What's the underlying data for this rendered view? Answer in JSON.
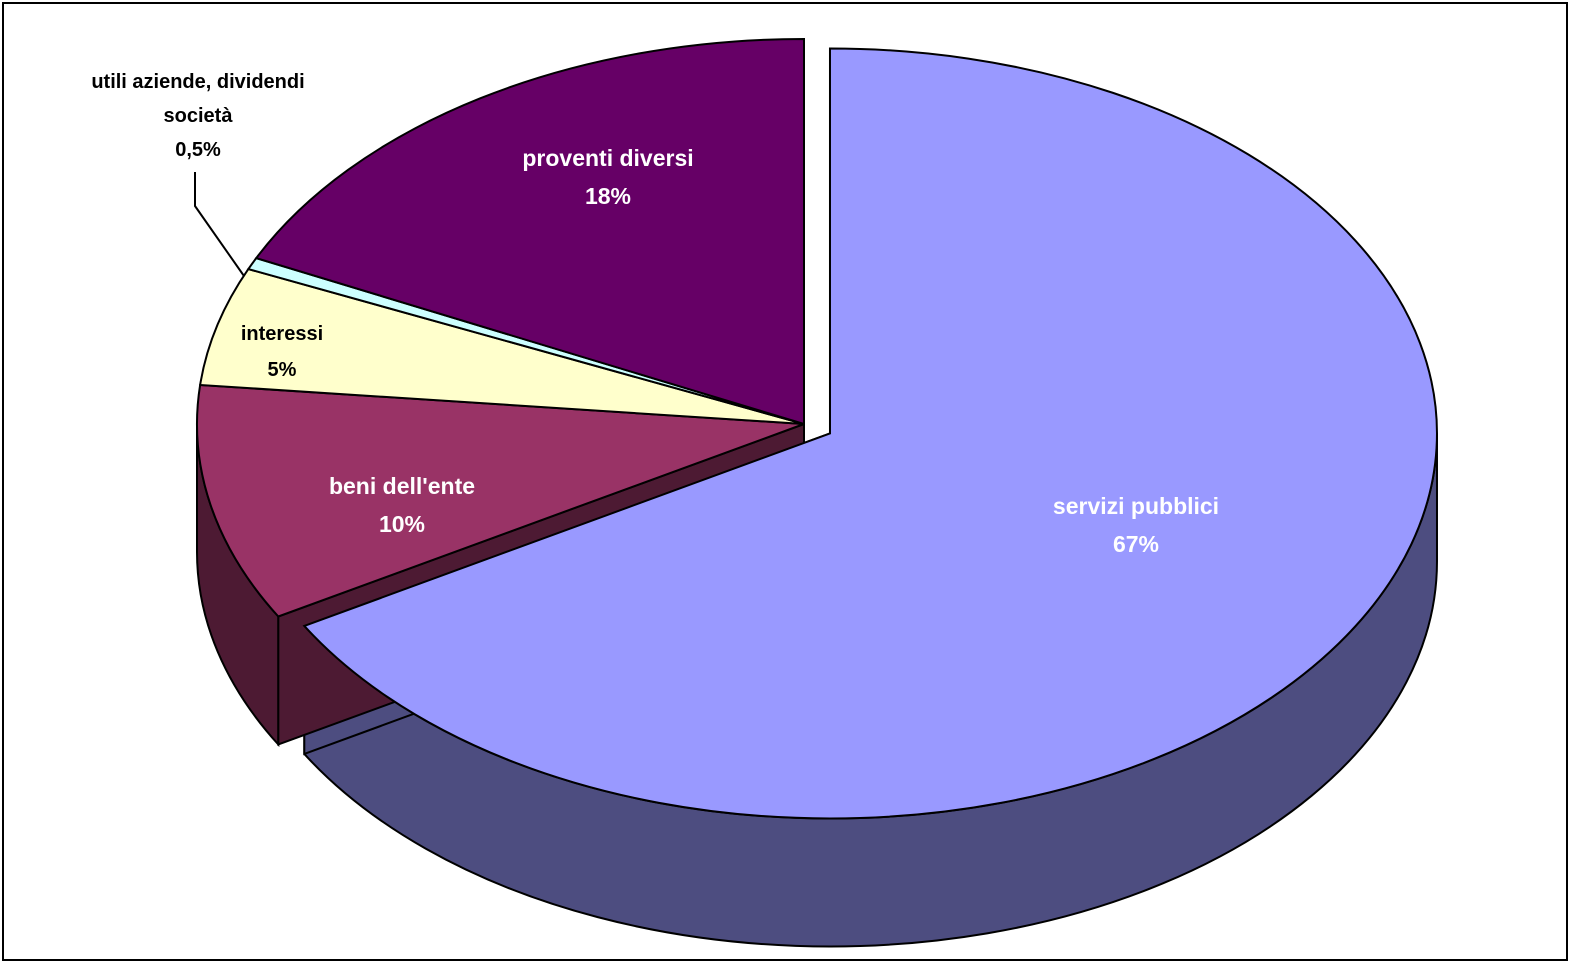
{
  "chart_data": {
    "type": "pie",
    "three_d": true,
    "title": "",
    "slices": [
      {
        "label": "servizi pubblici",
        "value": 67,
        "value_label": "67%",
        "color": "#9999FF",
        "side_color": "#4D4D80",
        "label_color": "#FFFFFF",
        "exploded": true
      },
      {
        "label": "beni dell'ente",
        "value": 10,
        "value_label": "10%",
        "color": "#993366",
        "side_color": "#4D1A33",
        "label_color": "#FFFFFF",
        "exploded": false
      },
      {
        "label": "interessi",
        "value": 5,
        "value_label": "5%",
        "color": "#FFFFCC",
        "side_color": "#808066",
        "label_color": "#000000",
        "exploded": false
      },
      {
        "label": "utili aziende, dividendi società",
        "value": 0.5,
        "value_label": "0,5%",
        "color": "#CCFFFF",
        "side_color": "#668080",
        "label_color": "#000000",
        "exploded": false
      },
      {
        "label": "proventi diversi",
        "value": 18,
        "value_label": "18%",
        "color": "#660066",
        "side_color": "#330033",
        "label_color": "#FFFFFF",
        "exploded": false
      }
    ],
    "legend": "none",
    "data_labels": "category and percentage"
  },
  "labels": {
    "servizi": {
      "line1": "servizi pubblici",
      "line2": "67%"
    },
    "beni": {
      "line1": "beni dell'ente",
      "line2": "10%"
    },
    "interessi": {
      "line1": "interessi",
      "line2": "5%"
    },
    "utili": {
      "line1": "utili aziende, dividendi",
      "line2": "società",
      "line3": "0,5%"
    },
    "proventi": {
      "line1": "proventi diversi",
      "line2": "18%"
    }
  }
}
